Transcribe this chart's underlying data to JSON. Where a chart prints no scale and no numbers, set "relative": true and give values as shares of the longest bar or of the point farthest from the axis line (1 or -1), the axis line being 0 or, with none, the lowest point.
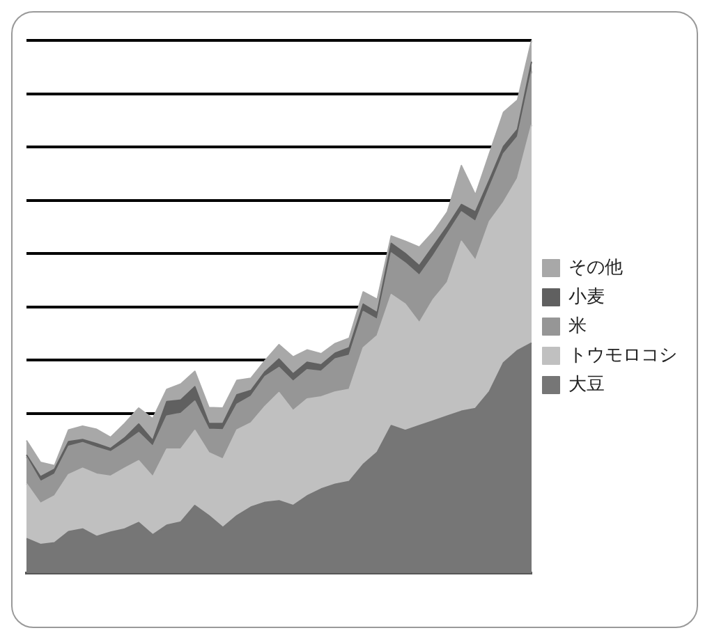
{
  "chart_data": {
    "type": "area",
    "stacked": true,
    "relative": true,
    "grid": "y",
    "legend": "right",
    "categories": [
      null,
      null,
      null,
      null,
      null,
      null,
      null,
      null,
      null,
      null,
      null,
      null,
      null,
      null,
      null,
      null,
      null,
      null,
      null,
      null,
      null,
      null,
      null,
      null,
      null,
      null,
      null,
      null,
      null,
      null,
      null,
      null,
      null,
      null,
      null,
      null,
      null
    ],
    "series": [
      {
        "name": "大豆",
        "color": "#767676",
        "values": [
          0.065,
          0.054,
          0.057,
          0.078,
          0.083,
          0.069,
          0.077,
          0.083,
          0.095,
          0.072,
          0.09,
          0.096,
          0.127,
          0.108,
          0.086,
          0.108,
          0.124,
          0.133,
          0.136,
          0.127,
          0.145,
          0.158,
          0.167,
          0.172,
          0.204,
          0.227,
          0.277,
          0.268,
          0.277,
          0.286,
          0.295,
          0.304,
          0.309,
          0.341,
          0.395,
          0.418,
          0.432
        ]
      },
      {
        "name": "トウモロコシ",
        "color": "#c0c0c0",
        "values": [
          0.103,
          0.077,
          0.088,
          0.107,
          0.114,
          0.117,
          0.105,
          0.114,
          0.116,
          0.109,
          0.143,
          0.137,
          0.141,
          0.118,
          0.128,
          0.161,
          0.158,
          0.18,
          0.203,
          0.178,
          0.182,
          0.173,
          0.173,
          0.173,
          0.219,
          0.219,
          0.246,
          0.237,
          0.193,
          0.228,
          0.251,
          0.319,
          0.278,
          0.319,
          0.301,
          0.323,
          0.41
        ]
      },
      {
        "name": "米",
        "color": "#969696",
        "values": [
          0.05,
          0.041,
          0.041,
          0.053,
          0.048,
          0.05,
          0.046,
          0.048,
          0.053,
          0.057,
          0.062,
          0.067,
          0.055,
          0.044,
          0.055,
          0.048,
          0.05,
          0.056,
          0.047,
          0.055,
          0.055,
          0.048,
          0.062,
          0.064,
          0.068,
          0.03,
          0.078,
          0.077,
          0.089,
          0.082,
          0.091,
          0.055,
          0.073,
          0.064,
          0.091,
          0.078,
          0.1
        ]
      },
      {
        "name": "小麦",
        "color": "#606060",
        "values": [
          0.004,
          0.009,
          0.009,
          0.009,
          0.006,
          0.007,
          0.006,
          0.009,
          0.016,
          0.011,
          0.027,
          0.025,
          0.027,
          0.011,
          0.012,
          0.018,
          0.011,
          0.009,
          0.016,
          0.014,
          0.014,
          0.012,
          0.011,
          0.014,
          0.014,
          0.013,
          0.018,
          0.018,
          0.018,
          0.018,
          0.014,
          0.014,
          0.018,
          0.014,
          0.014,
          0.014,
          0.018
        ]
      },
      {
        "name": "その他",
        "color": "#a8a8a8",
        "values": [
          0.027,
          0.027,
          0.007,
          0.022,
          0.025,
          0.027,
          0.021,
          0.027,
          0.03,
          0.041,
          0.023,
          0.03,
          0.029,
          0.03,
          0.029,
          0.027,
          0.023,
          0.021,
          0.027,
          0.032,
          0.023,
          0.021,
          0.018,
          0.018,
          0.023,
          0.025,
          0.014,
          0.023,
          0.035,
          0.027,
          0.027,
          0.073,
          0.032,
          0.05,
          0.064,
          0.055,
          0.04
        ]
      }
    ]
  }
}
